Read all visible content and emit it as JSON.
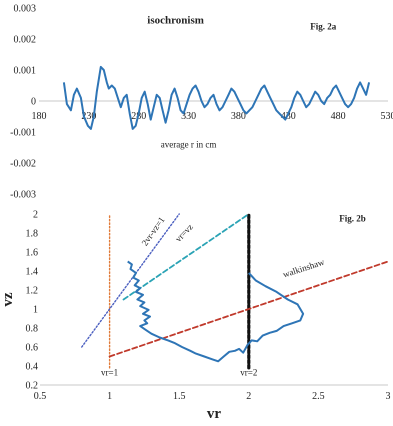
{
  "chart_data": [
    {
      "type": "line",
      "title": "isochronism",
      "fig_label": "Fig. 2a",
      "xlabel": "average r in cm",
      "ylabel": "",
      "xlim": [
        180,
        530
      ],
      "ylim": [
        -0.003,
        0.003
      ],
      "x_ticks": [
        180,
        230,
        280,
        330,
        380,
        430,
        480,
        530
      ],
      "y_ticks": [
        -0.003,
        -0.002,
        -0.001,
        0,
        0.001,
        0.002,
        0.003
      ],
      "y_tick_labels": [
        "-0.003",
        "-0.002",
        "-0.001",
        "0",
        "0.001",
        "0.002",
        "0.003"
      ],
      "grid": false,
      "colors": {
        "series": "#2e75b6"
      },
      "series": [
        {
          "x": [
            205,
            208,
            212,
            215,
            218,
            222,
            225,
            229,
            232,
            235,
            238,
            242,
            245,
            248,
            250,
            253,
            256,
            259,
            262,
            265,
            268,
            271,
            274,
            277,
            280,
            283,
            286,
            289,
            292,
            295,
            298,
            301,
            304,
            307,
            310,
            313,
            316,
            319,
            322,
            325,
            328,
            331,
            334,
            337,
            340,
            343,
            346,
            349,
            352,
            355,
            358,
            361,
            364,
            367,
            370,
            373,
            376,
            379,
            382,
            385,
            388,
            391,
            394,
            397,
            400,
            403,
            406,
            409,
            412,
            415,
            418,
            421,
            424,
            427,
            430,
            433,
            436,
            439,
            442,
            445,
            448,
            451,
            454,
            457,
            460,
            463,
            466,
            469,
            472,
            475,
            478,
            481,
            484,
            487,
            490,
            493,
            496,
            499,
            502,
            505,
            508,
            511
          ],
          "y": [
            0.0006,
            -0.0001,
            -0.0003,
            0.0002,
            0.0004,
            0.0001,
            -0.0005,
            -0.0008,
            -0.0009,
            -0.0005,
            0.0003,
            0.0011,
            0.001,
            0.0006,
            0.0004,
            0.0005,
            0.0004,
            0.0001,
            -0.0002,
            0.0001,
            0.0002,
            -0.0004,
            -0.0009,
            -0.0008,
            -0.0004,
            0.0001,
            0.0003,
            -0.0001,
            -0.0006,
            -0.0002,
            0.0002,
            0.0001,
            -0.0003,
            -0.0007,
            -0.0003,
            0.0002,
            0.0004,
            0.0001,
            -0.0003,
            -0.0004,
            -0.0001,
            0.0002,
            0.0004,
            0.0005,
            0.0003,
            0.0,
            -0.0002,
            -0.0001,
            0.0001,
            0.0002,
            -0.0001,
            -0.0003,
            -0.0002,
            0.0,
            0.0002,
            0.0004,
            0.0003,
            0.0001,
            -0.0001,
            -0.0003,
            -0.0004,
            -0.0003,
            -0.0002,
            0.0,
            0.0002,
            0.0004,
            0.0005,
            0.0003,
            0.0001,
            -0.0001,
            -0.0003,
            -0.0004,
            -0.0005,
            -0.0006,
            -0.0004,
            -0.0002,
            0.0001,
            0.0003,
            0.0002,
            0.0,
            -0.0002,
            -0.0001,
            0.0001,
            0.0003,
            0.0002,
            0.0,
            -0.0001,
            0.0001,
            0.0002,
            0.0004,
            0.0005,
            0.0003,
            0.0001,
            -0.0001,
            -0.0002,
            -0.0001,
            0.0001,
            0.0004,
            0.0006,
            0.0004,
            0.0002,
            0.0006
          ]
        }
      ]
    },
    {
      "type": "line",
      "fig_label": "Fig. 2b",
      "xlabel": "vr",
      "ylabel": "vz",
      "xlim": [
        0.5,
        3
      ],
      "ylim": [
        0.2,
        2
      ],
      "x_ticks": [
        0.5,
        1,
        1.5,
        2,
        2.5,
        3
      ],
      "x_tick_labels": [
        "0.5",
        "1",
        "1.5",
        "2",
        "2.5",
        "3"
      ],
      "y_ticks": [
        0.2,
        0.4,
        0.6,
        0.8,
        1,
        1.2,
        1.4,
        1.6,
        1.8,
        2
      ],
      "y_tick_labels": [
        "0.2",
        "0.4",
        "0.6",
        "0.8",
        "1",
        "1.2",
        "1.4",
        "1.6",
        "1.8",
        "2"
      ],
      "grid": false,
      "colors": {
        "trajectory": "#2e75b6",
        "vr1": "#e07b39",
        "vr2": "#111111",
        "twovr": "#4b5fc0",
        "vrvz": "#2aa3b5",
        "walkinshaw": "#c0392b"
      },
      "reference_lines": [
        {
          "label": "vr=1",
          "style": "dotted",
          "color": "#e07b39",
          "points": [
            [
              1,
              0.38
            ],
            [
              1,
              2
            ]
          ],
          "label_at": [
            1,
            0.3
          ]
        },
        {
          "label": "vr=2",
          "style": "dotted-heavy",
          "color": "#111111",
          "points": [
            [
              2,
              0.38
            ],
            [
              2,
              2
            ]
          ],
          "label_at": [
            2,
            0.3
          ]
        },
        {
          "label": "2vr-vz=1",
          "style": "dotted",
          "color": "#4b5fc0",
          "points": [
            [
              0.8,
              0.6
            ],
            [
              1.5,
              2.0
            ]
          ],
          "label_at": [
            1.33,
            1.8
          ]
        },
        {
          "label": "vr=vz",
          "style": "dashed",
          "color": "#2aa3b5",
          "points": [
            [
              1.1,
              1.1
            ],
            [
              2,
              2
            ]
          ],
          "label_at": [
            1.55,
            1.78
          ]
        },
        {
          "label": "walkinshaw",
          "style": "dashed",
          "color": "#c0392b",
          "points": [
            [
              1,
              0.5
            ],
            [
              3,
              1.5
            ]
          ],
          "label_at": [
            2.4,
            1.4
          ]
        }
      ],
      "series": [
        {
          "x": [
            1.13,
            1.16,
            1.15,
            1.19,
            1.17,
            1.21,
            1.18,
            1.22,
            1.19,
            1.24,
            1.2,
            1.25,
            1.22,
            1.28,
            1.24,
            1.29,
            1.25,
            1.27,
            1.22,
            1.26,
            1.3,
            1.36,
            1.42,
            1.47,
            1.52,
            1.58,
            1.62,
            1.68,
            1.74,
            1.78,
            1.82,
            1.86,
            1.9,
            1.93,
            1.96,
            1.99,
            2.02,
            2.06,
            2.1,
            2.15,
            2.2,
            2.25,
            2.31,
            2.37,
            2.39,
            2.35,
            2.28,
            2.2,
            2.12,
            2.05,
            2.0
          ],
          "y": [
            1.5,
            1.47,
            1.42,
            1.38,
            1.33,
            1.3,
            1.25,
            1.22,
            1.18,
            1.15,
            1.1,
            1.07,
            1.03,
            0.99,
            0.95,
            0.92,
            0.88,
            0.85,
            0.82,
            0.78,
            0.74,
            0.7,
            0.67,
            0.64,
            0.6,
            0.56,
            0.53,
            0.5,
            0.47,
            0.45,
            0.5,
            0.55,
            0.56,
            0.58,
            0.54,
            0.62,
            0.67,
            0.66,
            0.72,
            0.75,
            0.77,
            0.82,
            0.85,
            0.88,
            0.95,
            1.05,
            1.1,
            1.18,
            1.24,
            1.3,
            1.38
          ]
        }
      ]
    }
  ]
}
